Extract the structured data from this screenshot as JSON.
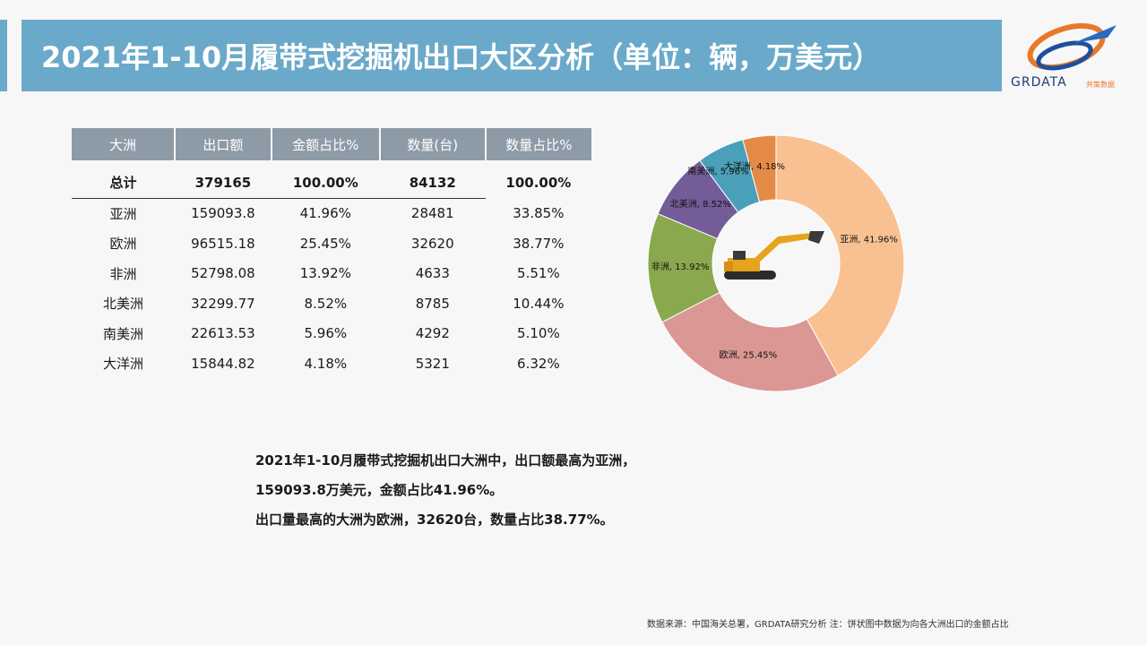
{
  "header": {
    "title": "2021年1-10月履带式挖掘机出口大区分析（单位：辆，万美元）",
    "logo_text": "GRDATA",
    "logo_sub": "共策数据"
  },
  "table": {
    "columns": [
      "大洲",
      "出口额",
      "金额占比%",
      "数量(台)",
      "数量占比%"
    ],
    "total": [
      "总计",
      "379165",
      "100.00%",
      "84132",
      "100.00%"
    ],
    "rows": [
      [
        "亚洲",
        "159093.8",
        "41.96%",
        "28481",
        "33.85%"
      ],
      [
        "欧洲",
        "96515.18",
        "25.45%",
        "32620",
        "38.77%"
      ],
      [
        "非洲",
        "52798.08",
        "13.92%",
        "4633",
        "5.51%"
      ],
      [
        "北美洲",
        "32299.77",
        "8.52%",
        "8785",
        "10.44%"
      ],
      [
        "南美洲",
        "22613.53",
        "5.96%",
        "4292",
        "5.10%"
      ],
      [
        "大洋洲",
        "15844.82",
        "4.18%",
        "5321",
        "6.32%"
      ]
    ]
  },
  "chart_data": {
    "type": "pie",
    "donut": true,
    "categories": [
      "亚洲",
      "欧洲",
      "非洲",
      "北美洲",
      "南美洲",
      "大洋洲"
    ],
    "values": [
      41.96,
      25.45,
      13.92,
      8.52,
      5.96,
      4.18
    ],
    "labels": [
      "亚洲, 41.96%",
      "欧洲, 25.45%",
      "非洲, 13.92%",
      "北美洲, 8.52%",
      "南美洲, 5.96%",
      "大洋洲, 4.18%"
    ],
    "colors": [
      "#f9c192",
      "#da9794",
      "#8aa84e",
      "#735c98",
      "#4aa0b9",
      "#e48a47"
    ],
    "center_image": "excavator"
  },
  "summary": {
    "line1": "2021年1-10月履带式挖掘机出口大洲中，出口额最高为亚洲，",
    "line2": "159093.8万美元，金额占比41.96%。",
    "line3": "出口量最高的大洲为欧洲，32620台，数量占比38.77%。"
  },
  "footer": {
    "source": "数据来源：中国海关总署，GRDATA研究分析   注：饼状图中数据为向各大洲出口的金额占比"
  }
}
